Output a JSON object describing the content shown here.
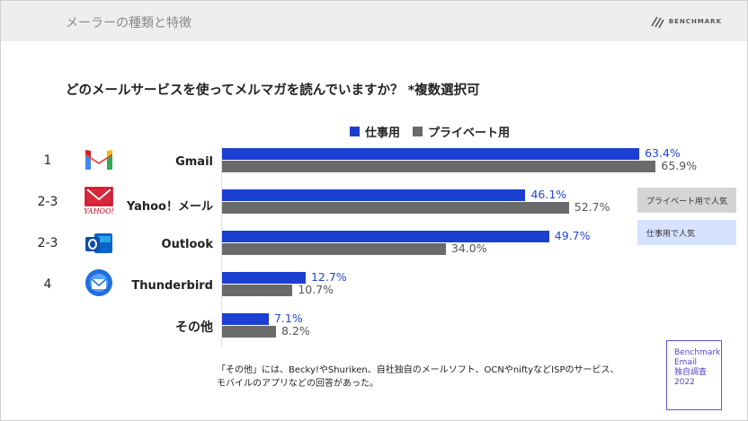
{
  "header": {
    "title": "メーラーの種類と特徴",
    "brand": "BENCHMARK"
  },
  "question": "どのメールサービスを使ってメルマガを読んでいますか？ *複数選択可",
  "colors": {
    "work": "#1b3fd1",
    "private": "#6a6a6a",
    "work_text": "#2346d6",
    "private_text": "#555555",
    "private_note_bg": "#d4d4d4",
    "work_note_bg": "#d6e2ff"
  },
  "chart_data": {
    "type": "bar",
    "orientation": "horizontal",
    "categories": [
      "Gmail",
      "Yahoo！メール",
      "Outlook",
      "Thunderbird",
      "その他"
    ],
    "series": [
      {
        "name": "仕事用",
        "values": [
          63.4,
          46.1,
          49.7,
          12.7,
          7.1
        ],
        "labels": [
          "63.4%",
          "46.1%",
          "49.7%",
          "12.7%",
          "7.1%"
        ]
      },
      {
        "name": "プライベート用",
        "values": [
          65.9,
          52.7,
          34.0,
          10.7,
          8.2
        ],
        "labels": [
          "65.9%",
          "52.7%",
          "34.0%",
          "10.7%",
          "8.2%"
        ]
      }
    ],
    "ranks": [
      "1",
      "2-3",
      "2-3",
      "4",
      ""
    ],
    "xlim": [
      0,
      100
    ],
    "legend_position": "top"
  },
  "notes": {
    "private_popular": "プライベート用で人気",
    "work_popular": "仕事用で人気"
  },
  "footnote": [
    "「その他」には、Becky!やShuriken、自社独自のメールソフト、OCNやniftyなどISPのサービス、",
    "モバイルのアプリなどの回答があった。"
  ],
  "stamp": [
    "Benchmark",
    "Email",
    "独自調査",
    "2022"
  ],
  "icons": [
    "gmail-icon",
    "yahoo-mail-icon",
    "outlook-icon",
    "thunderbird-icon"
  ]
}
